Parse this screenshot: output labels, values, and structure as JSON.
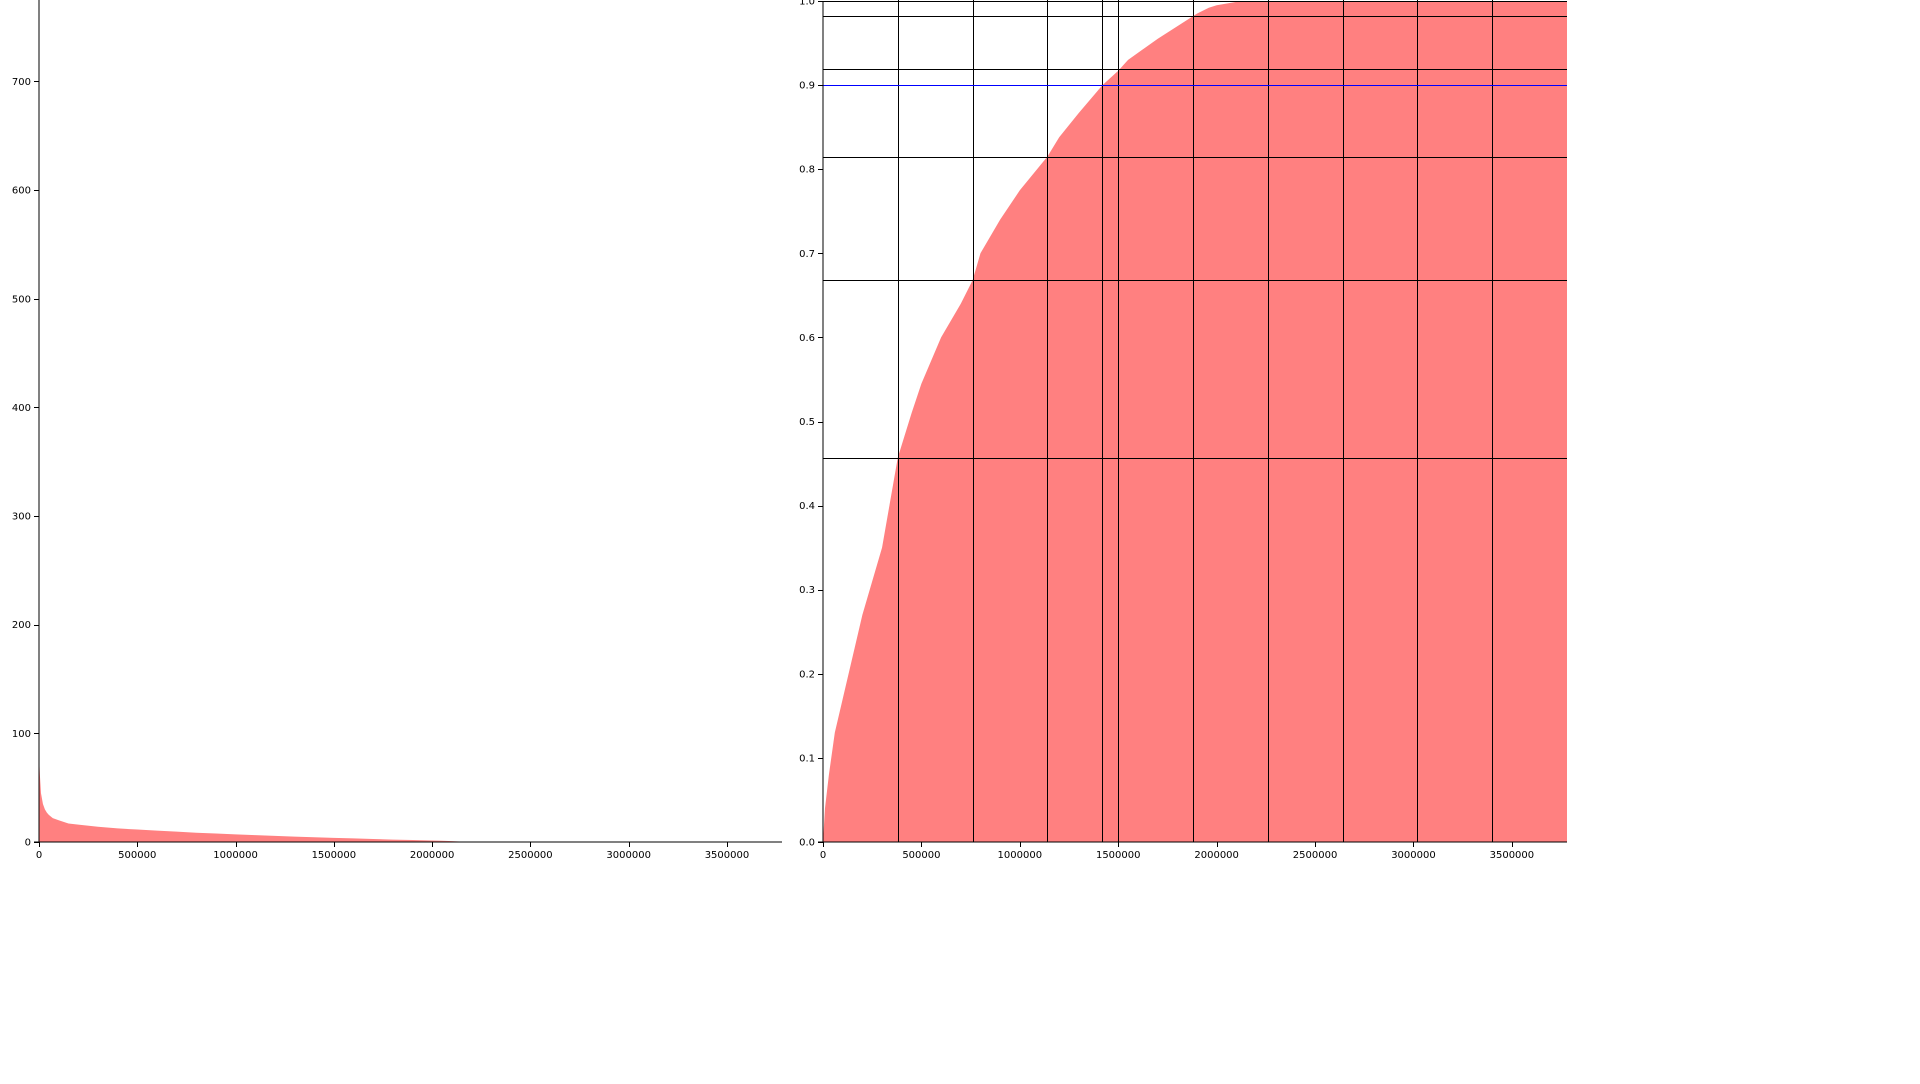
{
  "colors": {
    "fill": "#ff8080",
    "reference_line": "#0000ff",
    "axis": "#000000",
    "background": "#ffffff"
  },
  "chart_data": [
    {
      "type": "area",
      "title": "",
      "xlabel": "",
      "ylabel": "",
      "xlim": [
        0,
        3780000
      ],
      "ylim": [
        0,
        775
      ],
      "x_ticks": [
        0,
        500000,
        1000000,
        1500000,
        2000000,
        2500000,
        3000000,
        3500000
      ],
      "y_ticks": [
        0,
        100,
        200,
        300,
        400,
        500,
        600,
        700
      ],
      "grid": false,
      "series": [
        {
          "x": [
            0,
            5000,
            10000,
            20000,
            30000,
            40000,
            50000,
            70000,
            100000,
            150000,
            200000,
            300000,
            400000,
            500000,
            600000,
            700000,
            800000,
            900000,
            1000000,
            1100000,
            1200000,
            1300000,
            1400000,
            1500000,
            1600000,
            1700000,
            1800000,
            1900000,
            2000000,
            2050000,
            2100000,
            2150000,
            2500000,
            3000000,
            3500000,
            3780000
          ],
          "y": [
            80,
            60,
            45,
            35,
            30,
            27,
            25,
            22,
            20,
            17,
            16,
            14,
            12.5,
            11.5,
            10.5,
            9.5,
            8.5,
            7.8,
            7,
            6.3,
            5.6,
            5,
            4.4,
            3.8,
            3.3,
            2.8,
            2.2,
            1.8,
            1.4,
            1.1,
            0.8,
            0.3,
            0.1,
            0.05,
            0.02,
            0
          ]
        }
      ]
    },
    {
      "type": "area",
      "title": "",
      "xlabel": "",
      "ylabel": "",
      "xlim": [
        0,
        3780000
      ],
      "ylim": [
        0,
        1.0
      ],
      "x_ticks": [
        0,
        500000,
        1000000,
        1500000,
        2000000,
        2500000,
        3000000,
        3500000
      ],
      "y_ticks": [
        0.0,
        0.1,
        0.2,
        0.3,
        0.4,
        0.5,
        0.6,
        0.7,
        0.8,
        0.9,
        1.0
      ],
      "y_tick_labels": [
        "0.0",
        "0.1",
        "0.2",
        "0.3",
        "0.4",
        "0.5",
        "0.6",
        "0.7",
        "0.8",
        "0.9",
        "1.0"
      ],
      "grid": false,
      "series": [
        {
          "x": [
            0,
            10000,
            30000,
            60000,
            100000,
            150000,
            200000,
            250000,
            300000,
            380000,
            450000,
            500000,
            600000,
            700000,
            760000,
            800000,
            900000,
            1000000,
            1140000,
            1200000,
            1300000,
            1420000,
            1500000,
            1550000,
            1700000,
            1800000,
            1900000,
            1960000,
            2000000,
            2100000,
            2200000,
            3780000
          ],
          "y": [
            0.0,
            0.04,
            0.08,
            0.13,
            0.17,
            0.22,
            0.27,
            0.31,
            0.35,
            0.457,
            0.51,
            0.545,
            0.6,
            0.64,
            0.668,
            0.7,
            0.74,
            0.775,
            0.815,
            0.838,
            0.867,
            0.9,
            0.917,
            0.93,
            0.955,
            0.97,
            0.985,
            0.992,
            0.995,
            0.999,
            1.0,
            1.0
          ]
        }
      ],
      "vertical_lines_x": [
        380000,
        760000,
        1140000,
        1420000,
        1500000,
        1880000,
        2260000,
        2640000,
        3020000,
        3400000
      ],
      "horizontal_lines_y": [
        0.457,
        0.668,
        0.815,
        0.919,
        0.982,
        1.0
      ],
      "reference_line_y": 0.9
    }
  ]
}
